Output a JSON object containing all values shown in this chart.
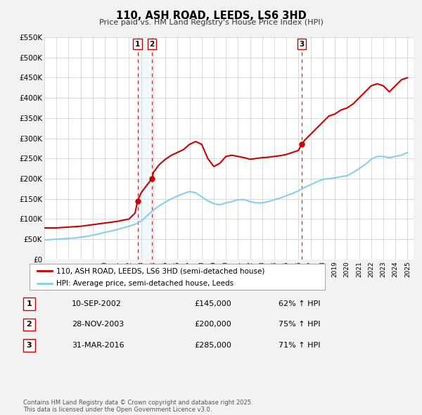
{
  "title": "110, ASH ROAD, LEEDS, LS6 3HD",
  "subtitle": "Price paid vs. HM Land Registry's House Price Index (HPI)",
  "red_line_label": "110, ASH ROAD, LEEDS, LS6 3HD (semi-detached house)",
  "blue_line_label": "HPI: Average price, semi-detached house, Leeds",
  "background_color": "#f2f2f2",
  "plot_bg_color": "#ffffff",
  "red_color": "#cc0000",
  "blue_color": "#87CEEB",
  "grid_color": "#cccccc",
  "ylim": [
    0,
    550000
  ],
  "yticks": [
    0,
    50000,
    100000,
    150000,
    200000,
    250000,
    300000,
    350000,
    400000,
    450000,
    500000,
    550000
  ],
  "ytick_labels": [
    "£0",
    "£50K",
    "£100K",
    "£150K",
    "£200K",
    "£250K",
    "£300K",
    "£350K",
    "£400K",
    "£450K",
    "£500K",
    "£550K"
  ],
  "xmin": 1995.0,
  "xmax": 2025.5,
  "sale_points": [
    {
      "year": 2002.7,
      "price": 145000,
      "label": "1"
    },
    {
      "year": 2003.9,
      "price": 200000,
      "label": "2"
    },
    {
      "year": 2016.25,
      "price": 285000,
      "label": "3"
    }
  ],
  "vline_dates": [
    2002.7,
    2003.9,
    2016.25
  ],
  "transactions": [
    {
      "label": "1",
      "date": "10-SEP-2002",
      "price": "£145,000",
      "hpi": "62% ↑ HPI"
    },
    {
      "label": "2",
      "date": "28-NOV-2003",
      "price": "£200,000",
      "hpi": "75% ↑ HPI"
    },
    {
      "label": "3",
      "date": "31-MAR-2016",
      "price": "£285,000",
      "hpi": "71% ↑ HPI"
    }
  ],
  "footer": "Contains HM Land Registry data © Crown copyright and database right 2025.\nThis data is licensed under the Open Government Licence v3.0.",
  "red_x": [
    1995.0,
    1995.5,
    1996.0,
    1996.5,
    1997.0,
    1997.5,
    1998.0,
    1998.5,
    1999.0,
    1999.5,
    2000.0,
    2000.5,
    2001.0,
    2001.5,
    2002.0,
    2002.5,
    2002.7,
    2003.0,
    2003.5,
    2003.9,
    2004.0,
    2004.5,
    2005.0,
    2005.5,
    2006.0,
    2006.5,
    2007.0,
    2007.5,
    2008.0,
    2008.5,
    2009.0,
    2009.5,
    2010.0,
    2010.5,
    2011.0,
    2011.5,
    2012.0,
    2012.5,
    2013.0,
    2013.5,
    2014.0,
    2014.5,
    2015.0,
    2015.5,
    2016.0,
    2016.25,
    2016.5,
    2017.0,
    2017.5,
    2018.0,
    2018.5,
    2019.0,
    2019.5,
    2020.0,
    2020.5,
    2021.0,
    2021.5,
    2022.0,
    2022.5,
    2023.0,
    2023.5,
    2024.0,
    2024.5,
    2025.0
  ],
  "red_y": [
    78000,
    78000,
    78000,
    79000,
    80000,
    81000,
    82000,
    84000,
    86000,
    88000,
    90000,
    92000,
    94000,
    97000,
    100000,
    115000,
    145000,
    165000,
    185000,
    200000,
    215000,
    235000,
    248000,
    258000,
    265000,
    272000,
    285000,
    292000,
    285000,
    250000,
    230000,
    238000,
    255000,
    258000,
    255000,
    252000,
    248000,
    250000,
    252000,
    253000,
    255000,
    257000,
    260000,
    265000,
    270000,
    285000,
    295000,
    310000,
    325000,
    340000,
    355000,
    360000,
    370000,
    375000,
    385000,
    400000,
    415000,
    430000,
    435000,
    430000,
    415000,
    430000,
    445000,
    450000
  ],
  "blue_x": [
    1995.0,
    1995.5,
    1996.0,
    1996.5,
    1997.0,
    1997.5,
    1998.0,
    1998.5,
    1999.0,
    1999.5,
    2000.0,
    2000.5,
    2001.0,
    2001.5,
    2002.0,
    2002.5,
    2003.0,
    2003.5,
    2004.0,
    2004.5,
    2005.0,
    2005.5,
    2006.0,
    2006.5,
    2007.0,
    2007.5,
    2008.0,
    2008.5,
    2009.0,
    2009.5,
    2010.0,
    2010.5,
    2011.0,
    2011.5,
    2012.0,
    2012.5,
    2013.0,
    2013.5,
    2014.0,
    2014.5,
    2015.0,
    2015.5,
    2016.0,
    2016.5,
    2017.0,
    2017.5,
    2018.0,
    2018.5,
    2019.0,
    2019.5,
    2020.0,
    2020.5,
    2021.0,
    2021.5,
    2022.0,
    2022.5,
    2023.0,
    2023.5,
    2024.0,
    2024.5,
    2025.0
  ],
  "blue_y": [
    48000,
    49000,
    50000,
    51000,
    52000,
    53000,
    55000,
    57000,
    60000,
    63000,
    67000,
    70000,
    74000,
    78000,
    82000,
    87000,
    95000,
    108000,
    122000,
    133000,
    142000,
    150000,
    157000,
    163000,
    168000,
    165000,
    155000,
    145000,
    138000,
    135000,
    140000,
    143000,
    148000,
    148000,
    143000,
    140000,
    140000,
    143000,
    148000,
    152000,
    158000,
    163000,
    170000,
    178000,
    185000,
    192000,
    198000,
    200000,
    202000,
    205000,
    207000,
    215000,
    225000,
    235000,
    248000,
    255000,
    255000,
    252000,
    255000,
    258000,
    265000
  ]
}
